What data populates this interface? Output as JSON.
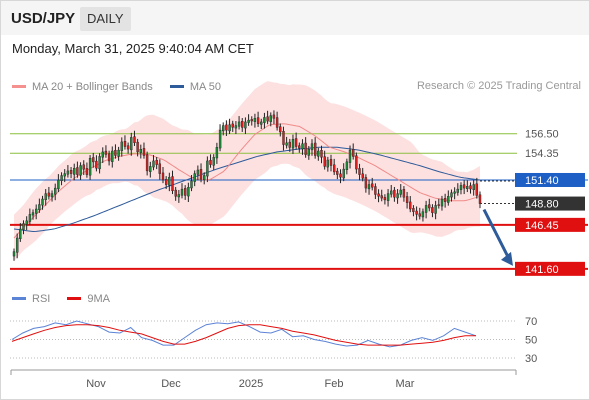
{
  "header": {
    "pair": "USD/JPY",
    "period": "DAILY"
  },
  "timestamp": "Monday, March 31, 2025 9:40:04 AM CET",
  "legend": {
    "items": [
      {
        "label": "MA 20 + Bollinger Bands",
        "color": "#f4908e"
      },
      {
        "label": "MA 50",
        "color": "#2e5b9a"
      }
    ],
    "copyright": "Research © 2025 Trading Central"
  },
  "rsi_legend": {
    "items": [
      {
        "label": "RSI",
        "color": "#5b83d6"
      },
      {
        "label": "9MA",
        "color": "#e01010"
      }
    ]
  },
  "chart_data": [
    {
      "type": "candlestick",
      "yaxis": {
        "min": 140.15,
        "max": 160.0
      },
      "x_tick_labels": [
        "Nov",
        "Dec",
        "2025",
        "Feb",
        "Mar"
      ],
      "levels": [
        {
          "value": 156.5,
          "label": "156.50",
          "kind": "resistance",
          "color": "#8cbf3f"
        },
        {
          "value": 154.35,
          "label": "154.35",
          "kind": "resistance",
          "color": "#8cbf3f"
        },
        {
          "value": 151.4,
          "label": "151.40",
          "kind": "pivot",
          "color": "#1d5fc4"
        },
        {
          "value": 148.8,
          "label": "148.80",
          "kind": "last",
          "color": "#333333"
        },
        {
          "value": 146.45,
          "label": "146.45",
          "kind": "support",
          "color": "#e01010"
        },
        {
          "value": 141.6,
          "label": "141.60",
          "kind": "support",
          "color": "#e01010"
        }
      ],
      "forecast_arrow": {
        "from": 148.8,
        "to": 141.6,
        "color": "#2e5b9a"
      },
      "series": [
        {
          "name": "USD/JPY",
          "closes": [
            143.5,
            145.0,
            146.0,
            146.6,
            146.9,
            147.6,
            147.8,
            148.2,
            148.7,
            149.3,
            149.9,
            149.6,
            149.9,
            150.5,
            151.4,
            151.9,
            152.1,
            152.4,
            152.1,
            152.7,
            152.0,
            153.0,
            152.6,
            152.0,
            153.8,
            153.4,
            152.7,
            154.0,
            154.5,
            154.2,
            153.5,
            154.6,
            154.1,
            154.7,
            155.6,
            155.1,
            154.8,
            156.1,
            155.5,
            154.5,
            154.8,
            154.1,
            152.4,
            152.9,
            153.5,
            153.1,
            152.1,
            151.4,
            150.9,
            151.7,
            150.2,
            149.6,
            149.8,
            150.4,
            149.7,
            150.6,
            151.3,
            152.1,
            152.5,
            151.5,
            151.9,
            153.5,
            153.1,
            153.9,
            155.0,
            156.9,
            157.4,
            156.9,
            157.5,
            157.2,
            157.4,
            157.8,
            157.2,
            157.8,
            158.0,
            157.9,
            158.2,
            157.6,
            157.8,
            158.3,
            157.9,
            158.5,
            158.2,
            157.2,
            156.7,
            155.3,
            155.5,
            155.0,
            155.9,
            155.1,
            154.9,
            155.4,
            154.2,
            154.8,
            155.4,
            154.1,
            154.6,
            153.9,
            152.9,
            153.6,
            153.0,
            152.3,
            152.0,
            151.7,
            152.6,
            153.4,
            154.7,
            154.0,
            152.6,
            152.0,
            151.6,
            150.5,
            150.9,
            150.6,
            149.8,
            149.6,
            149.4,
            149.2,
            149.9,
            150.2,
            149.5,
            149.9,
            150.3,
            149.5,
            148.9,
            148.2,
            147.9,
            147.6,
            147.4,
            147.9,
            148.6,
            148.3,
            147.8,
            148.6,
            148.6,
            149.3,
            149.0,
            149.6,
            150.0,
            150.1,
            150.4,
            150.8,
            150.5,
            150.7,
            150.4,
            150.9,
            149.7,
            148.8
          ]
        },
        {
          "name": "MA 20",
          "values": [
            145.0,
            146.8,
            148.5,
            150.2,
            151.6,
            152.6,
            153.5,
            154.0,
            154.3,
            154.2,
            153.6,
            152.5,
            151.5,
            151.4,
            152.4,
            154.5,
            156.4,
            157.5,
            157.6,
            157.3,
            156.3,
            155.0,
            154.5,
            153.8,
            153.0,
            152.0,
            151.0,
            150.0,
            149.4,
            149.1,
            149.1,
            149.6
          ]
        },
        {
          "name": "MA 50",
          "values": [
            146.0,
            145.7,
            146.0,
            146.7,
            147.5,
            148.4,
            149.3,
            150.2,
            151.0,
            151.8,
            152.6,
            153.3,
            154.0,
            154.5,
            154.8,
            155.0,
            155.0,
            154.7,
            154.2,
            153.6,
            153.0,
            152.3,
            151.7,
            151.4
          ]
        }
      ]
    },
    {
      "type": "line",
      "yaxis": {
        "min": 30,
        "max": 70
      },
      "y_tick_labels": [
        "70",
        "50",
        "30"
      ],
      "series": [
        {
          "name": "RSI",
          "values": [
            50,
            57,
            62,
            64,
            68,
            66,
            70,
            67,
            64,
            58,
            57,
            63,
            52,
            49,
            44,
            44,
            52,
            60,
            66,
            68,
            67,
            69,
            64,
            58,
            57,
            61,
            53,
            54,
            50,
            48,
            45,
            43,
            44,
            49,
            45,
            42,
            44,
            49,
            52,
            49,
            54,
            62,
            58,
            54
          ]
        },
        {
          "name": "9MA",
          "values": [
            48,
            52,
            56,
            60,
            63,
            65,
            66,
            66,
            65,
            63,
            60,
            58,
            56,
            52,
            48,
            45,
            45,
            48,
            52,
            57,
            62,
            65,
            66,
            66,
            64,
            62,
            59,
            57,
            55,
            52,
            49,
            47,
            45,
            44,
            44,
            44,
            44,
            45,
            46,
            47,
            49,
            52,
            54,
            54
          ]
        }
      ]
    }
  ]
}
